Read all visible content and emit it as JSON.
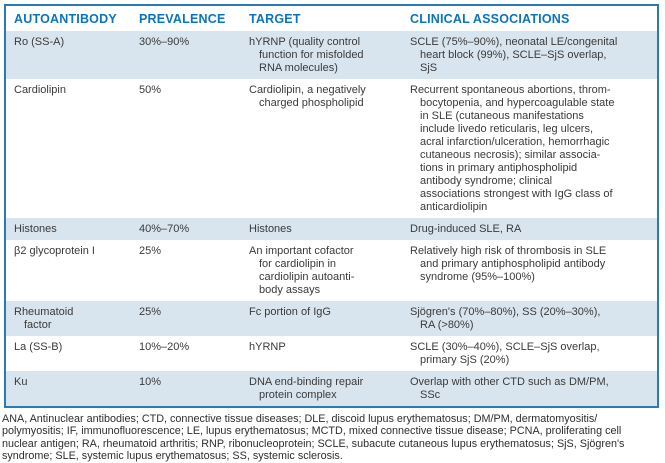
{
  "colors": {
    "header_text": "#0a74be",
    "table_border": "#2b7ab8",
    "row_shade": "#d9e5ee",
    "body_text": "#3a3a3a"
  },
  "table": {
    "columns": [
      "AUTOANTIBODY",
      "PREVALENCE",
      "TARGET",
      "CLINICAL ASSOCIATIONS"
    ],
    "rows": [
      {
        "autoantibody": "Ro (SS-A)",
        "prevalence": "30%–90%",
        "target": "hYRNP (quality control\nfunction for misfolded\nRNA molecules)",
        "clinical": "SCLE (75%–90%), neonatal LE/congenital\nheart block (99%), SCLE–SjS overlap,\nSjS"
      },
      {
        "autoantibody": "Cardiolipin",
        "prevalence": "50%",
        "target": "Cardiolipin, a negatively\ncharged phospholipid",
        "clinical": "Recurrent spontaneous abortions, throm-\nbocytopenia, and hypercoagulable state\nin SLE (cutaneous manifestations\ninclude livedo reticularis, leg ulcers,\nacral infarction/ulceration, hemorrhagic\ncutaneous necrosis); similar associa-\ntions in primary antiphospholipid\nantibody syndrome; clinical\nassociations strongest with IgG class of\nanticardiolipin"
      },
      {
        "autoantibody": "Histones",
        "prevalence": "40%–70%",
        "target": "Histones",
        "clinical": "Drug-induced SLE, RA"
      },
      {
        "autoantibody": "β2 glycoprotein I",
        "prevalence": "25%",
        "target": "An important cofactor\nfor cardiolipin in\ncardiolipin autoanti-\nbody assays",
        "clinical": "Relatively high risk of thrombosis in SLE\nand primary antiphospholipid antibody\nsyndrome (95%–100%)"
      },
      {
        "autoantibody": "Rheumatoid\nfactor",
        "prevalence": "25%",
        "target": "Fc portion of IgG",
        "clinical": "Sjögren's (70%–80%), SS (20%–30%),\nRA (>80%)"
      },
      {
        "autoantibody": "La (SS-B)",
        "prevalence": "10%–20%",
        "target": "hYRNP",
        "clinical": "SCLE (30%–40%), SCLE–SjS overlap,\nprimary SjS (20%)"
      },
      {
        "autoantibody": "Ku",
        "prevalence": "10%",
        "target": "DNA end-binding repair\nprotein complex",
        "clinical": "Overlap with other CTD such as DM/PM,\nSSc"
      }
    ]
  },
  "footnote": "ANA, Antinuclear antibodies; CTD, connective tissue diseases; DLE, discoid lupus erythematosus; DM/PM, dermatomyositis/\npolymyositis; IF, immunofluorescence; LE, lupus erythematosus; MCTD, mixed connective tissue disease; PCNA, proliferating cell\nnuclear antigen; RA, rheumatoid arthritis; RNP, ribonucleoprotein; SCLE, subacute cutaneous lupus erythematosus; SjS, Sjögren's\nsyndrome; SLE, systemic lupus erythematosus; SS, systemic sclerosis."
}
